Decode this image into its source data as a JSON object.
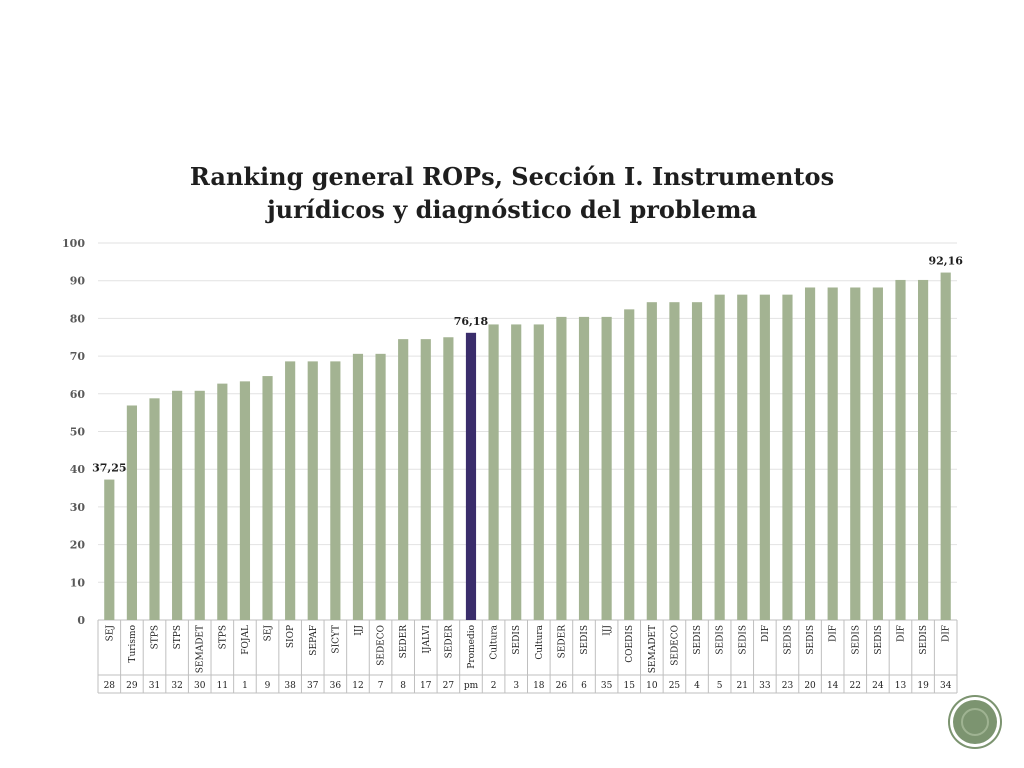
{
  "chart_data": {
    "type": "bar",
    "title": [
      "Ranking general ROPs, Sección I. Instrumentos",
      "jurídicos y diagnóstico del problema"
    ],
    "xlabel": "",
    "ylabel": "",
    "ylim": [
      0,
      100
    ],
    "yticks": [
      "0",
      "10",
      "20",
      "30",
      "40",
      "50",
      "60",
      "70",
      "80",
      "90",
      "100"
    ],
    "grid": true,
    "categories": [
      "SEJ",
      "Turismo",
      "STPS",
      "STPS",
      "SEMADET",
      "STPS",
      "FOJAL",
      "SEJ",
      "SIOP",
      "SEPAF",
      "SICYT",
      "IJJ",
      "SEDECO",
      "SEDER",
      "IJALVI",
      "SEDER",
      "Promedio",
      "Cultura",
      "SEDIS",
      "Cultura",
      "SEDER",
      "SEDIS",
      "IJJ",
      "COEDIS",
      "SEMADET",
      "SEDECO",
      "SEDIS",
      "SEDIS",
      "SEDIS",
      "DIF",
      "SEDIS",
      "SEDIS",
      "DIF",
      "SEDIS",
      "SEDIS",
      "DIF",
      "SEDIS",
      "DIF"
    ],
    "category_ids": [
      "28",
      "29",
      "31",
      "32",
      "30",
      "11",
      "1",
      "9",
      "38",
      "37",
      "36",
      "12",
      "7",
      "8",
      "17",
      "27",
      "pm",
      "2",
      "3",
      "18",
      "26",
      "6",
      "35",
      "15",
      "10",
      "25",
      "4",
      "5",
      "21",
      "33",
      "23",
      "20",
      "14",
      "22",
      "24",
      "13",
      "19",
      "34"
    ],
    "values": [
      37.25,
      56.9,
      58.8,
      60.8,
      60.8,
      62.7,
      63.3,
      64.7,
      68.6,
      68.6,
      68.6,
      70.6,
      70.6,
      74.5,
      74.5,
      75.0,
      76.18,
      78.4,
      78.4,
      78.4,
      80.4,
      80.4,
      80.4,
      82.4,
      84.3,
      84.3,
      84.3,
      86.3,
      86.3,
      86.3,
      86.3,
      88.2,
      88.2,
      88.2,
      88.2,
      90.2,
      90.2,
      92.16
    ],
    "highlight_index": 16,
    "data_labels": [
      {
        "index": 0,
        "text": "37,25"
      },
      {
        "index": 16,
        "text": "76,18"
      },
      {
        "index": 37,
        "text": "92,16"
      }
    ],
    "colors": {
      "bar": "#a3b392",
      "highlight": "#3a2d6b",
      "grid": "#e2e2e2",
      "axis_text": "#595959",
      "label_text": "#1e1e1e"
    }
  }
}
